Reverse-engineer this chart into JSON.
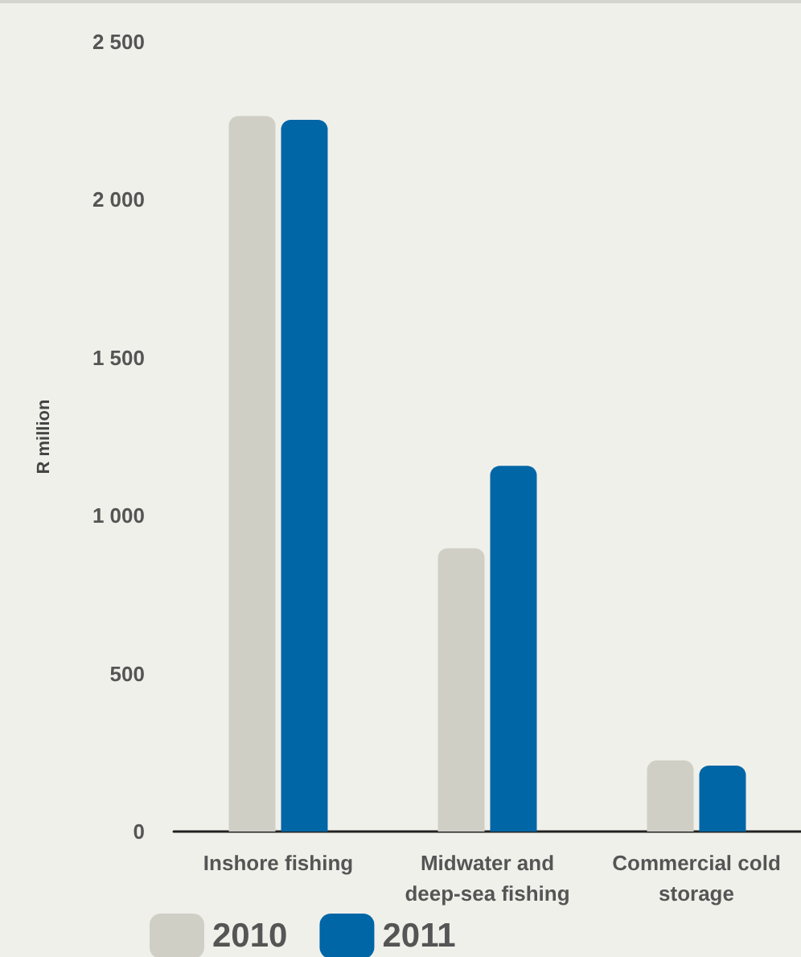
{
  "chart_data": {
    "type": "bar",
    "ylabel": "R million",
    "categories": [
      "Inshore fishing",
      "Midwater and deep-sea fishing",
      "Commercial cold storage"
    ],
    "series": [
      {
        "name": "2010",
        "color": "#cfcfc6",
        "values": [
          2265,
          897,
          225
        ]
      },
      {
        "name": "2011",
        "color": "#0066a6",
        "values": [
          2253,
          1158,
          209
        ]
      }
    ],
    "ylim": [
      0,
      2500
    ],
    "yticks": [
      {
        "value": 0,
        "label": "0"
      },
      {
        "value": 500,
        "label": "500"
      },
      {
        "value": 1000,
        "label": "1 000"
      },
      {
        "value": 1500,
        "label": "1 500"
      },
      {
        "value": 2000,
        "label": "2 000"
      },
      {
        "value": 2500,
        "label": "2 500"
      }
    ],
    "grid": false,
    "legend": "bottom left"
  }
}
